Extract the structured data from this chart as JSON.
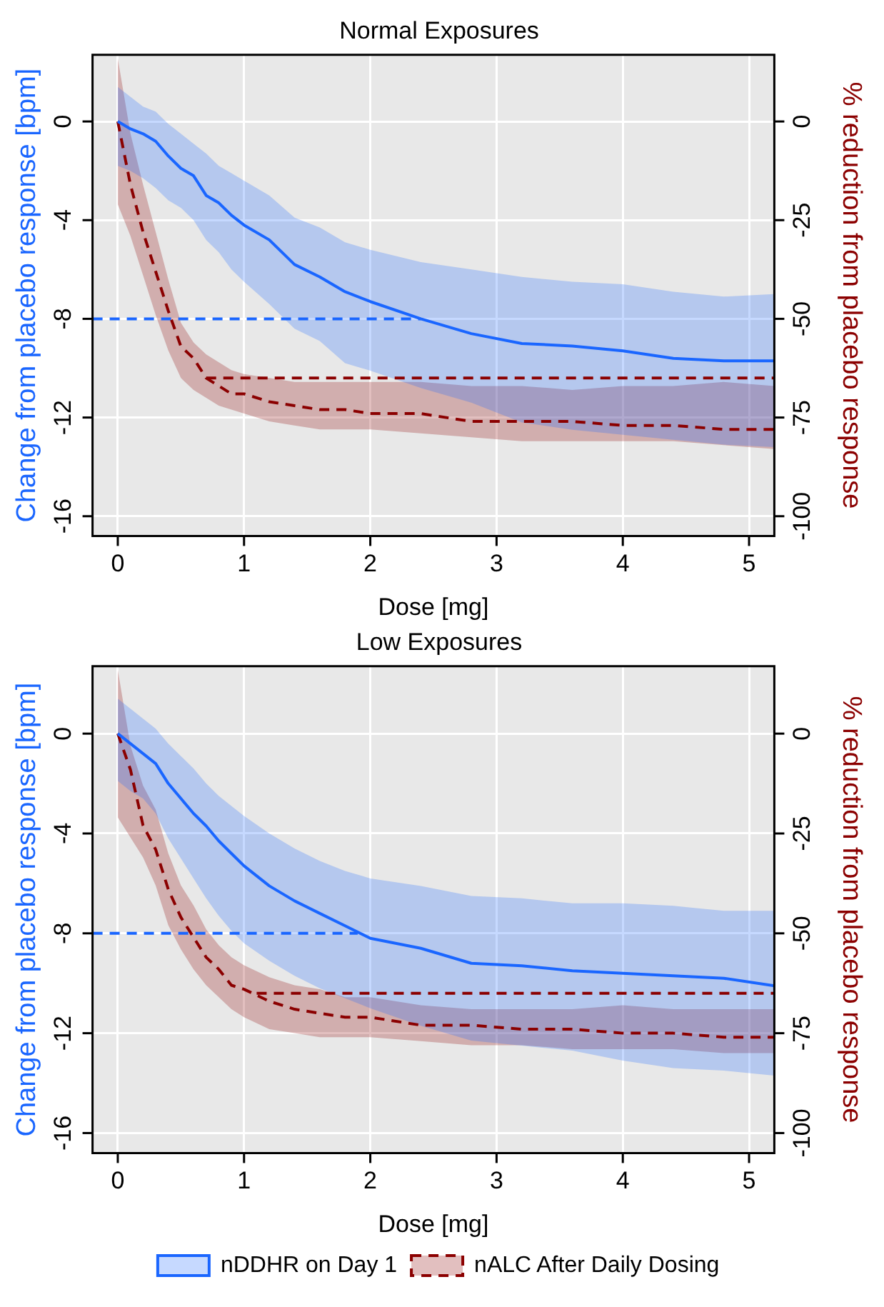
{
  "chart_data": [
    {
      "type": "line",
      "title": "Normal Exposures",
      "xlabel": "Dose [mg]",
      "ylabel": "Change from placebo response [bpm]",
      "y2label": "% reduction from placebo response",
      "x": [
        0,
        0.1,
        0.2,
        0.3,
        0.4,
        0.5,
        0.6,
        0.7,
        0.8,
        0.9,
        1.0,
        1.2,
        1.4,
        1.6,
        1.8,
        2.0,
        2.4,
        2.8,
        3.2,
        3.6,
        4.0,
        4.4,
        4.8,
        5.2
      ],
      "xlim": [
        -0.2,
        5.2
      ],
      "xticks": [
        0,
        1,
        2,
        3,
        4,
        5
      ],
      "ylim": [
        -16.8,
        2.7
      ],
      "yticks": [
        -16,
        -12,
        -8,
        -4,
        0
      ],
      "y2lim": [
        -105,
        16.875
      ],
      "y2ticks": [
        -100,
        -75,
        -50,
        -25,
        0
      ],
      "grid": true,
      "series": [
        {
          "color": "#1a66ff",
          "line_style": "solid",
          "values": [
            0,
            -0.3,
            -0.5,
            -0.8,
            -1.4,
            -1.9,
            -2.2,
            -3.0,
            -3.3,
            -3.8,
            -4.2,
            -4.8,
            -5.8,
            -6.3,
            -6.9,
            -7.3,
            -8.0,
            -8.6,
            -9.0,
            -9.1,
            -9.3,
            -9.6,
            -9.7,
            -9.7
          ],
          "upper": [
            1.4,
            1.0,
            0.6,
            0.4,
            -0.1,
            -0.5,
            -0.9,
            -1.3,
            -1.8,
            -2.1,
            -2.4,
            -3.0,
            -3.9,
            -4.3,
            -4.9,
            -5.2,
            -5.7,
            -6.0,
            -6.3,
            -6.5,
            -6.6,
            -6.9,
            -7.1,
            -7.0
          ],
          "lower": [
            -1.8,
            -2.0,
            -2.3,
            -2.7,
            -3.2,
            -3.5,
            -4.0,
            -4.8,
            -5.3,
            -6.0,
            -6.5,
            -7.4,
            -8.4,
            -8.9,
            -9.8,
            -10.1,
            -10.8,
            -11.4,
            -12.2,
            -12.5,
            -12.7,
            -12.9,
            -13.1,
            -13.2
          ]
        },
        {
          "color": "#8b0000",
          "axis": "y2",
          "line_style": "dashed",
          "values": [
            0,
            -16,
            -28,
            -38,
            -48,
            -57,
            -60,
            -65,
            -67,
            -69,
            -69,
            -71,
            -72,
            -73,
            -73,
            -74,
            -74,
            -76,
            -76,
            -76,
            -77,
            -77,
            -78,
            -78
          ],
          "upper": [
            16,
            -3,
            -16,
            -28,
            -40,
            -51,
            -56,
            -59,
            -61,
            -63,
            -64,
            -65,
            -66,
            -66,
            -66,
            -66,
            -66,
            -67,
            -67,
            -68,
            -67,
            -67,
            -66,
            -67
          ],
          "lower": [
            -21,
            -29,
            -39,
            -49,
            -58,
            -65,
            -68,
            -70,
            -72,
            -73,
            -74,
            -76,
            -77,
            -78,
            -78,
            -78,
            -79,
            -80,
            -81,
            -81,
            -81,
            -81,
            -82,
            -83
          ]
        },
        {
          "type": "line",
          "color": "#1a66ff",
          "line_style": "dashed",
          "x": [
            -0.2,
            2.4
          ],
          "values": [
            -8,
            -8
          ]
        },
        {
          "type": "line",
          "color": "#8b0000",
          "axis": "y2",
          "line_style": "dashed",
          "x": [
            0.7,
            5.2
          ],
          "values": [
            -65,
            -65
          ]
        }
      ]
    },
    {
      "type": "line",
      "title": "Low Exposures",
      "xlabel": "Dose [mg]",
      "ylabel": "Change from placebo response [bpm]",
      "y2label": "% reduction from placebo response",
      "x": [
        0,
        0.1,
        0.2,
        0.3,
        0.4,
        0.5,
        0.6,
        0.7,
        0.8,
        0.9,
        1.0,
        1.2,
        1.4,
        1.6,
        1.8,
        2.0,
        2.4,
        2.8,
        3.2,
        3.6,
        4.0,
        4.4,
        4.8,
        5.2
      ],
      "xlim": [
        -0.2,
        5.2
      ],
      "xticks": [
        0,
        1,
        2,
        3,
        4,
        5
      ],
      "ylim": [
        -16.8,
        2.7
      ],
      "yticks": [
        -16,
        -12,
        -8,
        -4,
        0
      ],
      "y2lim": [
        -105,
        16.875
      ],
      "y2ticks": [
        -100,
        -75,
        -50,
        -25,
        0
      ],
      "grid": true,
      "legend": "bottom",
      "series": [
        {
          "name": "nDDHR on Day 1",
          "color": "#1a66ff",
          "line_style": "solid",
          "values": [
            0,
            -0.4,
            -0.8,
            -1.2,
            -2.0,
            -2.6,
            -3.2,
            -3.7,
            -4.3,
            -4.8,
            -5.3,
            -6.1,
            -6.7,
            -7.2,
            -7.7,
            -8.2,
            -8.6,
            -9.2,
            -9.3,
            -9.5,
            -9.6,
            -9.7,
            -9.8,
            -10.1
          ],
          "upper": [
            1.4,
            1.0,
            0.6,
            0.2,
            -0.4,
            -0.9,
            -1.4,
            -2.0,
            -2.5,
            -2.9,
            -3.3,
            -4.0,
            -4.6,
            -5.1,
            -5.5,
            -5.8,
            -6.1,
            -6.5,
            -6.6,
            -6.8,
            -6.8,
            -6.9,
            -7.1,
            -7.1
          ],
          "lower": [
            -1.9,
            -2.3,
            -2.6,
            -3.2,
            -4.2,
            -5.0,
            -5.8,
            -6.6,
            -7.3,
            -7.9,
            -8.4,
            -9.1,
            -9.7,
            -10.2,
            -10.6,
            -11.0,
            -11.7,
            -12.3,
            -12.5,
            -12.7,
            -13.1,
            -13.4,
            -13.5,
            -13.7
          ]
        },
        {
          "name": "nALC After Daily Dosing",
          "color": "#8b0000",
          "axis": "y2",
          "line_style": "dashed",
          "values": [
            0,
            -9,
            -23,
            -29,
            -39,
            -46,
            -51,
            -56,
            -59,
            -63,
            -64,
            -67,
            -69,
            -70,
            -71,
            -71,
            -73,
            -73,
            -74,
            -74,
            -75,
            -75,
            -76,
            -76
          ],
          "upper": [
            16,
            -3,
            -13,
            -19,
            -30,
            -38,
            -43,
            -49,
            -53,
            -56,
            -58,
            -61,
            -63,
            -64,
            -66,
            -66,
            -68,
            -69,
            -69,
            -69,
            -68,
            -69,
            -69,
            -69
          ],
          "lower": [
            -21,
            -26,
            -31,
            -38,
            -48,
            -54,
            -59,
            -63,
            -66,
            -69,
            -71,
            -74,
            -75,
            -76,
            -76,
            -76,
            -77,
            -78,
            -78,
            -79,
            -79,
            -79,
            -80,
            -80
          ]
        },
        {
          "type": "line",
          "color": "#1a66ff",
          "line_style": "dashed",
          "x": [
            -0.2,
            1.9
          ],
          "values": [
            -8,
            -8
          ]
        },
        {
          "type": "line",
          "color": "#8b0000",
          "axis": "y2",
          "line_style": "dashed",
          "x": [
            1.1,
            5.2
          ],
          "values": [
            -65,
            -65
          ]
        }
      ]
    }
  ]
}
